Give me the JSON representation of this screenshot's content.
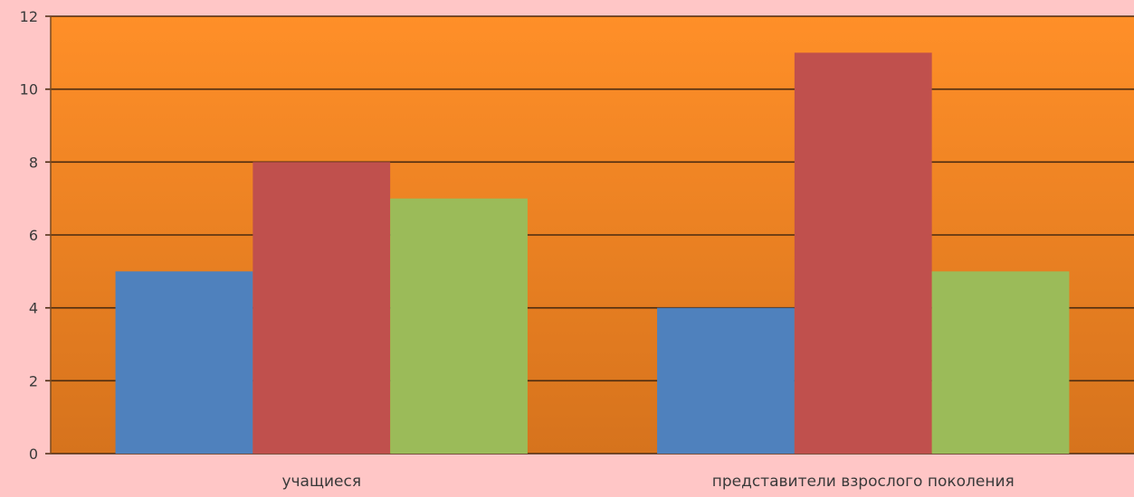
{
  "chart_data": {
    "type": "bar",
    "categories": [
      "учащиеся",
      "представители взрослого поколения"
    ],
    "series": [
      {
        "values": [
          5,
          4
        ],
        "color": "#4f81bd"
      },
      {
        "values": [
          8,
          11
        ],
        "color": "#c0504d"
      },
      {
        "values": [
          7,
          5
        ],
        "color": "#9bbb59"
      }
    ],
    "ylim": [
      0,
      12
    ],
    "yticks": [
      "0",
      "2",
      "4",
      "6",
      "8",
      "10",
      "12"
    ],
    "grid": true,
    "legend": "none",
    "plot_background": {
      "top": "#ff8f28",
      "bottom": "#d6731d"
    },
    "page_background": "#ffc6c6"
  }
}
